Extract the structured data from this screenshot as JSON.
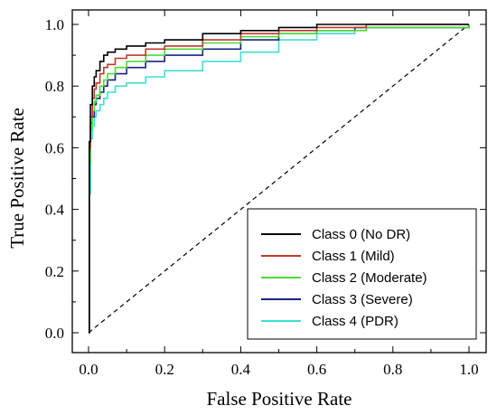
{
  "chart_data": {
    "type": "line",
    "title": "",
    "xlabel": "False Positive Rate",
    "ylabel": "True Positive Rate",
    "xlim": [
      0.0,
      1.0
    ],
    "ylim": [
      0.0,
      1.0
    ],
    "x_ticks": [
      "0.0",
      "0.2",
      "0.4",
      "0.6",
      "0.8",
      "1.0"
    ],
    "y_ticks": [
      "0.0",
      "0.2",
      "0.4",
      "0.6",
      "0.8",
      "1.0"
    ],
    "grid": false,
    "legend_position": "bottom-right",
    "diagonal": {
      "x": [
        0,
        1
      ],
      "y": [
        0,
        1
      ],
      "style": "dashed",
      "color": "#000000"
    },
    "series": [
      {
        "name": "Class 0 (No DR)",
        "color": "#000000",
        "x": [
          0,
          0.002,
          0.005,
          0.01,
          0.015,
          0.02,
          0.03,
          0.04,
          0.05,
          0.07,
          0.1,
          0.15,
          0.2,
          0.3,
          0.4,
          0.5,
          0.6,
          0.7,
          1.0
        ],
        "y": [
          0,
          0.62,
          0.74,
          0.8,
          0.83,
          0.85,
          0.88,
          0.9,
          0.91,
          0.92,
          0.93,
          0.94,
          0.95,
          0.97,
          0.98,
          0.99,
          1.0,
          1.0,
          1.0
        ]
      },
      {
        "name": "Class 1 (Mild)",
        "color": "#c0392b",
        "x": [
          0,
          0.002,
          0.005,
          0.01,
          0.015,
          0.02,
          0.03,
          0.04,
          0.05,
          0.07,
          0.1,
          0.15,
          0.2,
          0.3,
          0.4,
          0.5,
          0.6,
          0.73,
          1.0
        ],
        "y": [
          0,
          0.6,
          0.7,
          0.76,
          0.79,
          0.81,
          0.84,
          0.86,
          0.87,
          0.89,
          0.9,
          0.92,
          0.93,
          0.95,
          0.97,
          0.98,
          0.99,
          1.0,
          1.0
        ]
      },
      {
        "name": "Class 2 (Moderate)",
        "color": "#4cdb3a",
        "x": [
          0,
          0.002,
          0.005,
          0.01,
          0.015,
          0.02,
          0.03,
          0.04,
          0.05,
          0.07,
          0.1,
          0.15,
          0.2,
          0.3,
          0.4,
          0.5,
          0.6,
          0.73,
          1.0
        ],
        "y": [
          0,
          0.55,
          0.66,
          0.72,
          0.75,
          0.77,
          0.8,
          0.82,
          0.84,
          0.86,
          0.88,
          0.9,
          0.92,
          0.94,
          0.96,
          0.97,
          0.98,
          0.99,
          1.0
        ]
      },
      {
        "name": "Class 3 (Severe)",
        "color": "#1a237e",
        "x": [
          0,
          0.002,
          0.005,
          0.01,
          0.015,
          0.02,
          0.03,
          0.04,
          0.05,
          0.07,
          0.1,
          0.15,
          0.2,
          0.3,
          0.4,
          0.5,
          0.6,
          0.7,
          1.0
        ],
        "y": [
          0,
          0.59,
          0.68,
          0.7,
          0.74,
          0.76,
          0.78,
          0.8,
          0.82,
          0.84,
          0.86,
          0.88,
          0.9,
          0.92,
          0.95,
          0.97,
          0.98,
          0.99,
          1.0
        ]
      },
      {
        "name": "Class 4 (PDR)",
        "color": "#40e0d0",
        "x": [
          0,
          0.002,
          0.005,
          0.01,
          0.015,
          0.02,
          0.03,
          0.04,
          0.05,
          0.07,
          0.1,
          0.15,
          0.2,
          0.3,
          0.4,
          0.5,
          0.6,
          0.7,
          1.0
        ],
        "y": [
          0,
          0.45,
          0.63,
          0.67,
          0.7,
          0.72,
          0.74,
          0.76,
          0.78,
          0.8,
          0.81,
          0.83,
          0.85,
          0.88,
          0.91,
          0.95,
          0.97,
          0.99,
          1.0
        ]
      }
    ]
  }
}
